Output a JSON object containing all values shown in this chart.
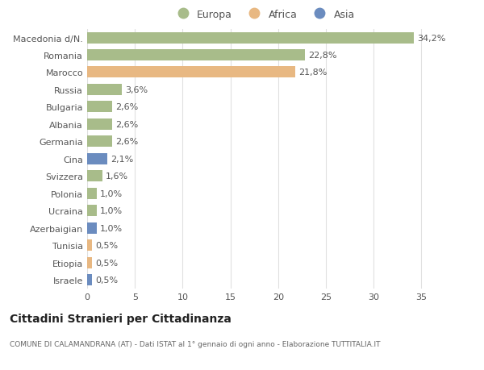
{
  "countries": [
    "Macedonia d/N.",
    "Romania",
    "Marocco",
    "Russia",
    "Bulgaria",
    "Albania",
    "Germania",
    "Cina",
    "Svizzera",
    "Polonia",
    "Ucraina",
    "Azerbaigian",
    "Tunisia",
    "Etiopia",
    "Israele"
  ],
  "values": [
    34.2,
    22.8,
    21.8,
    3.6,
    2.6,
    2.6,
    2.6,
    2.1,
    1.6,
    1.0,
    1.0,
    1.0,
    0.5,
    0.5,
    0.5
  ],
  "labels": [
    "34,2%",
    "22,8%",
    "21,8%",
    "3,6%",
    "2,6%",
    "2,6%",
    "2,6%",
    "2,1%",
    "1,6%",
    "1,0%",
    "1,0%",
    "1,0%",
    "0,5%",
    "0,5%",
    "0,5%"
  ],
  "continents": [
    "Europa",
    "Europa",
    "Africa",
    "Europa",
    "Europa",
    "Europa",
    "Europa",
    "Asia",
    "Europa",
    "Europa",
    "Europa",
    "Asia",
    "Africa",
    "Africa",
    "Asia"
  ],
  "colors": {
    "Europa": "#a8bc8a",
    "Africa": "#e8b882",
    "Asia": "#6b8cbf"
  },
  "bg_color": "#ffffff",
  "plot_bg_color": "#ffffff",
  "grid_color": "#e0e0e0",
  "title": "Cittadini Stranieri per Cittadinanza",
  "subtitle": "COMUNE DI CALAMANDRANA (AT) - Dati ISTAT al 1° gennaio di ogni anno - Elaborazione TUTTITALIA.IT",
  "xlim": [
    0,
    37
  ],
  "xticks": [
    0,
    5,
    10,
    15,
    20,
    25,
    30,
    35
  ],
  "label_fontsize": 8,
  "ytick_fontsize": 8,
  "xtick_fontsize": 8
}
